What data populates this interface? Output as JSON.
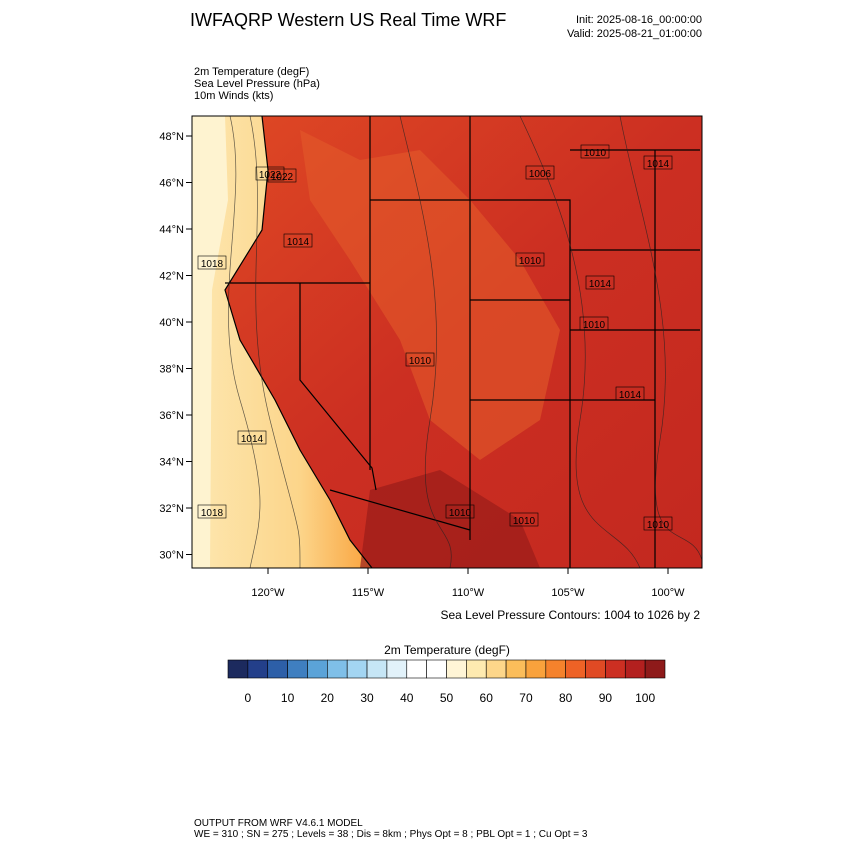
{
  "header": {
    "title": "IWFAQRP Western US Real Time WRF",
    "init": "Init: 2025-08-16_00:00:00",
    "valid": "Valid: 2025-08-21_01:00:00"
  },
  "fields": [
    "2m Temperature   (degF)",
    "Sea Level Pressure   (hPa)",
    "10m Winds   (kts)"
  ],
  "map": {
    "lat_labels": [
      "48°N",
      "46°N",
      "44°N",
      "42°N",
      "40°N",
      "38°N",
      "36°N",
      "34°N",
      "32°N",
      "30°N"
    ],
    "lon_labels": [
      "120°W",
      "115°W",
      "110°W",
      "105°W",
      "100°W"
    ],
    "contour_labels": [
      "1022",
      "1018",
      "1014",
      "1022",
      "1010",
      "1006",
      "1010",
      "1014",
      "1014",
      "1010",
      "1014",
      "1010",
      "1010",
      "1014",
      "1018",
      "1010",
      "1010"
    ],
    "contour_note": "Sea Level Pressure Contours: 1004 to 1026 by 2"
  },
  "colorbar": {
    "title": "2m Temperature  (degF)",
    "colors": [
      "#1c2a5e",
      "#233f8a",
      "#2d5fa8",
      "#3f7fc0",
      "#5ba3d8",
      "#7fbfe8",
      "#a3d5f2",
      "#c6e6f6",
      "#e2f2fa",
      "#ffffff",
      "#ffffff",
      "#fff5d6",
      "#feeab0",
      "#fdd68a",
      "#fbbd5a",
      "#f9a23c",
      "#f5822c",
      "#ee6226",
      "#e04a24",
      "#cc2f22",
      "#b3201f",
      "#8e1a1a"
    ],
    "ticks": [
      0,
      10,
      20,
      30,
      40,
      50,
      60,
      70,
      80,
      90,
      100
    ]
  },
  "footer": [
    "OUTPUT FROM WRF V4.6.1 MODEL",
    "WE = 310 ; SN = 275 ; Levels = 38 ; Dis = 8km ; Phys Opt = 8 ; PBL Opt = 1 ; Cu Opt = 3"
  ]
}
